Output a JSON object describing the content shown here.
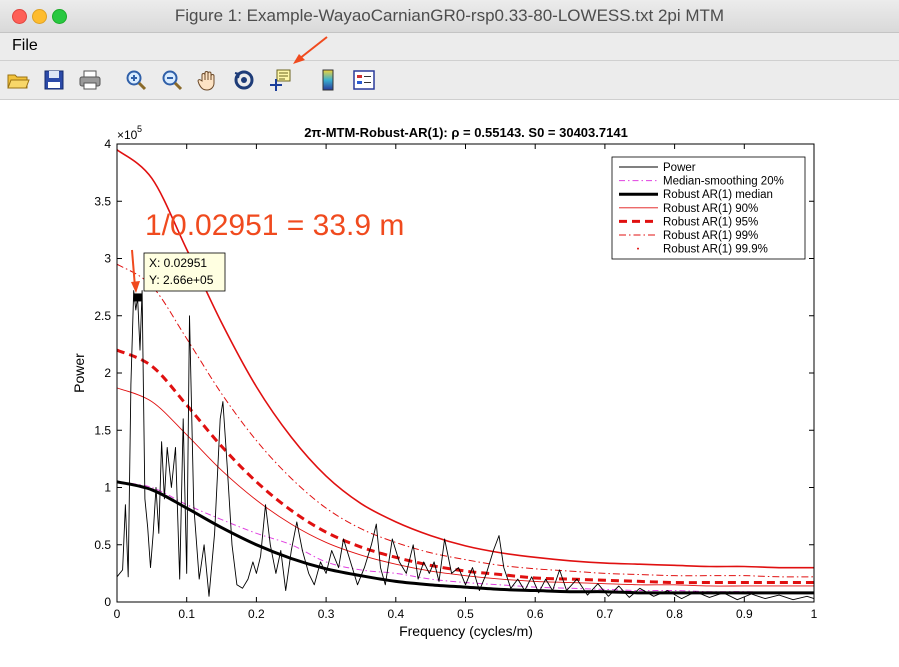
{
  "window": {
    "title": "Figure 1: Example-WayaoCarnianGR0-rsp0.33-80-LOWESS.txt 2pi MTM",
    "menu": {
      "file": "File"
    },
    "toolbar_icons": [
      "open-icon",
      "save-icon",
      "print-icon",
      "zoom-in-icon",
      "zoom-out-icon",
      "pan-hand-icon",
      "rotate-3d-icon",
      "data-cursor-icon",
      "colorbar-icon",
      "legend-icon"
    ]
  },
  "plot": {
    "title": "2π-MTM-Robust-AR(1): ρ = 0.55143. S0 = 30403.7141",
    "exponent_base": "×10",
    "exponent_power": "5",
    "annotation": "1/0.02951 = 33.9 m",
    "datatip": {
      "x_text": "X: 0.02951",
      "y_text": "Y: 2.66e+05"
    },
    "colors": {
      "annotation": "#f04a1e",
      "confidence": "#e01010",
      "median_smoothing": "#e040e0"
    }
  },
  "chart_data": {
    "type": "line",
    "xlabel": "Frequency (cycles/m)",
    "ylabel": "Power",
    "xlim": [
      0,
      1
    ],
    "ylim": [
      0,
      4
    ],
    "x_ticks": [
      "0",
      "0.1",
      "0.2",
      "0.3",
      "0.4",
      "0.5",
      "0.6",
      "0.7",
      "0.8",
      "0.9",
      "1"
    ],
    "y_ticks": [
      "0",
      "0.5",
      "1",
      "1.5",
      "2",
      "2.5",
      "3",
      "3.5",
      "4"
    ],
    "y_unit_multiplier": 100000,
    "legend_placement": "top-right",
    "grid": false,
    "x": [
      0,
      0.05,
      0.1,
      0.15,
      0.2,
      0.25,
      0.3,
      0.35,
      0.4,
      0.45,
      0.5,
      0.55,
      0.6,
      0.65,
      0.7,
      0.75,
      0.8,
      0.85,
      0.9,
      0.95,
      1
    ],
    "series": [
      {
        "name": "Power",
        "style": "thin-black",
        "points": [
          [
            0,
            0.22
          ],
          [
            0.008,
            0.28
          ],
          [
            0.012,
            0.85
          ],
          [
            0.016,
            0.22
          ],
          [
            0.02,
            1.9
          ],
          [
            0.024,
            2.72
          ],
          [
            0.027,
            2.55
          ],
          [
            0.0295,
            2.66
          ],
          [
            0.033,
            2.2
          ],
          [
            0.036,
            2.72
          ],
          [
            0.04,
            0.9
          ],
          [
            0.044,
            0.65
          ],
          [
            0.048,
            0.3
          ],
          [
            0.052,
            0.6
          ],
          [
            0.056,
            1.0
          ],
          [
            0.06,
            0.6
          ],
          [
            0.064,
            1.4
          ],
          [
            0.068,
            0.9
          ],
          [
            0.072,
            1.35
          ],
          [
            0.078,
            1.0
          ],
          [
            0.084,
            1.35
          ],
          [
            0.09,
            0.2
          ],
          [
            0.095,
            1.6
          ],
          [
            0.1,
            0.25
          ],
          [
            0.104,
            2.5
          ],
          [
            0.11,
            0.85
          ],
          [
            0.118,
            0.2
          ],
          [
            0.125,
            0.5
          ],
          [
            0.132,
            0.05
          ],
          [
            0.14,
            0.6
          ],
          [
            0.148,
            1.6
          ],
          [
            0.152,
            1.75
          ],
          [
            0.158,
            1.2
          ],
          [
            0.165,
            0.5
          ],
          [
            0.172,
            0.15
          ],
          [
            0.18,
            0.12
          ],
          [
            0.188,
            0.2
          ],
          [
            0.195,
            0.35
          ],
          [
            0.2,
            0.25
          ],
          [
            0.206,
            0.4
          ],
          [
            0.213,
            0.85
          ],
          [
            0.22,
            0.5
          ],
          [
            0.228,
            0.25
          ],
          [
            0.235,
            0.45
          ],
          [
            0.242,
            0.1
          ],
          [
            0.25,
            0.45
          ],
          [
            0.258,
            0.7
          ],
          [
            0.266,
            0.45
          ],
          [
            0.275,
            0.25
          ],
          [
            0.283,
            0.15
          ],
          [
            0.292,
            0.35
          ],
          [
            0.3,
            0.25
          ],
          [
            0.308,
            0.45
          ],
          [
            0.318,
            0.3
          ],
          [
            0.325,
            0.55
          ],
          [
            0.335,
            0.35
          ],
          [
            0.345,
            0.15
          ],
          [
            0.355,
            0.3
          ],
          [
            0.365,
            0.5
          ],
          [
            0.372,
            0.68
          ],
          [
            0.378,
            0.3
          ],
          [
            0.385,
            0.15
          ],
          [
            0.395,
            0.55
          ],
          [
            0.405,
            0.35
          ],
          [
            0.415,
            0.25
          ],
          [
            0.425,
            0.5
          ],
          [
            0.432,
            0.2
          ],
          [
            0.44,
            0.35
          ],
          [
            0.448,
            0.25
          ],
          [
            0.455,
            0.35
          ],
          [
            0.462,
            0.18
          ],
          [
            0.47,
            0.55
          ],
          [
            0.48,
            0.25
          ],
          [
            0.49,
            0.3
          ],
          [
            0.5,
            0.15
          ],
          [
            0.51,
            0.3
          ],
          [
            0.52,
            0.1
          ],
          [
            0.53,
            0.25
          ],
          [
            0.54,
            0.45
          ],
          [
            0.548,
            0.58
          ],
          [
            0.555,
            0.3
          ],
          [
            0.565,
            0.12
          ],
          [
            0.575,
            0.2
          ],
          [
            0.585,
            0.1
          ],
          [
            0.595,
            0.22
          ],
          [
            0.605,
            0.08
          ],
          [
            0.615,
            0.2
          ],
          [
            0.625,
            0.1
          ],
          [
            0.635,
            0.28
          ],
          [
            0.645,
            0.1
          ],
          [
            0.66,
            0.2
          ],
          [
            0.675,
            0.06
          ],
          [
            0.69,
            0.16
          ],
          [
            0.705,
            0.05
          ],
          [
            0.72,
            0.14
          ],
          [
            0.735,
            0.04
          ],
          [
            0.75,
            0.12
          ],
          [
            0.77,
            0.05
          ],
          [
            0.79,
            0.1
          ],
          [
            0.81,
            0.03
          ],
          [
            0.83,
            0.09
          ],
          [
            0.85,
            0.04
          ],
          [
            0.87,
            0.08
          ],
          [
            0.89,
            0.02
          ],
          [
            0.91,
            0.07
          ],
          [
            0.93,
            0.03
          ],
          [
            0.95,
            0.06
          ],
          [
            0.97,
            0.02
          ],
          [
            0.99,
            0.05
          ],
          [
            1,
            0.03
          ]
        ]
      },
      {
        "name": "Median-smoothing 20%",
        "style": "magenta-dashdot",
        "values": [
          1.05,
          1.0,
          0.85,
          0.72,
          0.6,
          0.5,
          0.35,
          0.28,
          0.25,
          0.2,
          0.17,
          0.15,
          0.13,
          0.12,
          0.11,
          0.1,
          0.1,
          0.09,
          0.09,
          0.08,
          0.08
        ]
      },
      {
        "name": "Robust AR(1) median",
        "style": "thick-black",
        "values": [
          1.05,
          0.98,
          0.82,
          0.65,
          0.5,
          0.38,
          0.29,
          0.23,
          0.18,
          0.15,
          0.13,
          0.11,
          0.1,
          0.09,
          0.09,
          0.08,
          0.08,
          0.08,
          0.08,
          0.08,
          0.08
        ]
      },
      {
        "name": "Robust AR(1) 90%",
        "style": "thin-red",
        "values": [
          1.87,
          1.75,
          1.46,
          1.15,
          0.89,
          0.68,
          0.52,
          0.41,
          0.33,
          0.27,
          0.23,
          0.2,
          0.18,
          0.17,
          0.16,
          0.15,
          0.15,
          0.14,
          0.14,
          0.14,
          0.14
        ]
      },
      {
        "name": "Robust AR(1) 95%",
        "style": "thick-red-dashed",
        "values": [
          2.2,
          2.06,
          1.72,
          1.36,
          1.05,
          0.8,
          0.61,
          0.48,
          0.39,
          0.32,
          0.27,
          0.24,
          0.21,
          0.2,
          0.19,
          0.18,
          0.17,
          0.17,
          0.17,
          0.17,
          0.17
        ]
      },
      {
        "name": "Robust AR(1) 99%",
        "style": "red-dashdot",
        "values": [
          2.95,
          2.76,
          2.3,
          1.82,
          1.41,
          1.08,
          0.82,
          0.64,
          0.52,
          0.43,
          0.37,
          0.32,
          0.29,
          0.27,
          0.25,
          0.24,
          0.23,
          0.23,
          0.23,
          0.22,
          0.22
        ]
      },
      {
        "name": "Robust AR(1) 99.9%",
        "style": "red-solid",
        "values": [
          3.95,
          3.7,
          3.08,
          2.44,
          1.88,
          1.44,
          1.1,
          0.86,
          0.7,
          0.58,
          0.49,
          0.43,
          0.39,
          0.36,
          0.34,
          0.33,
          0.32,
          0.31,
          0.31,
          0.3,
          0.3
        ]
      }
    ],
    "highlight_point": {
      "x": 0.02951,
      "y": 2.66
    }
  }
}
